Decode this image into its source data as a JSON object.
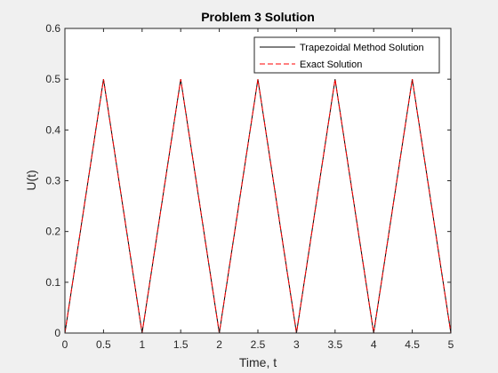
{
  "chart_data": {
    "type": "line",
    "title": "Problem 3 Solution",
    "xlabel": "Time, t",
    "ylabel": "U(t)",
    "xlim": [
      0,
      5
    ],
    "ylim": [
      0,
      0.6
    ],
    "xticks": [
      0,
      0.5,
      1,
      1.5,
      2,
      2.5,
      3,
      3.5,
      4,
      4.5,
      5
    ],
    "xtick_labels": [
      "0",
      "0.5",
      "1",
      "1.5",
      "2",
      "2.5",
      "3",
      "3.5",
      "4",
      "4.5",
      "5"
    ],
    "yticks": [
      0,
      0.1,
      0.2,
      0.3,
      0.4,
      0.5,
      0.6
    ],
    "ytick_labels": [
      "0",
      "0.1",
      "0.2",
      "0.3",
      "0.4",
      "0.5",
      "0.6"
    ],
    "grid": false,
    "legend_position": "top-right",
    "series": [
      {
        "name": "Trapezoidal Method Solution",
        "color": "#000000",
        "style": "solid",
        "x": [
          0,
          0.5,
          1,
          1.5,
          2,
          2.5,
          3,
          3.5,
          4,
          4.5,
          5
        ],
        "y": [
          0,
          0.5,
          0,
          0.5,
          0,
          0.5,
          0,
          0.5,
          0,
          0.5,
          0
        ]
      },
      {
        "name": "Exact Solution",
        "color": "#ff0000",
        "style": "dashed",
        "x": [
          0,
          0.5,
          1,
          1.5,
          2,
          2.5,
          3,
          3.5,
          4,
          4.5,
          5
        ],
        "y": [
          0,
          0.5,
          0,
          0.5,
          0,
          0.5,
          0,
          0.5,
          0,
          0.5,
          0
        ]
      }
    ]
  }
}
